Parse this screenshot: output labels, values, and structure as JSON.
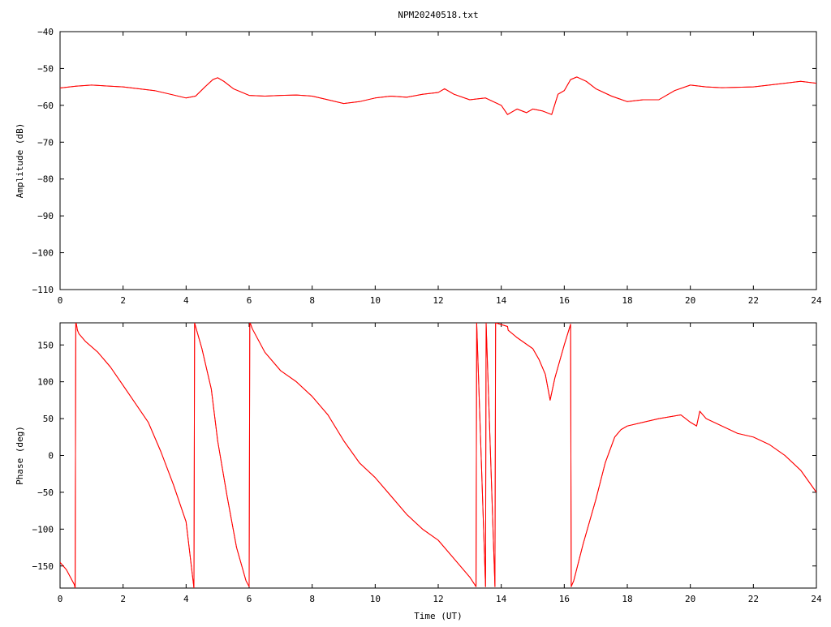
{
  "chart_data": [
    {
      "type": "line",
      "title": "NPM20240518.txt",
      "xlabel": "",
      "ylabel": "Amplitude (dB)",
      "xlim": [
        0,
        24
      ],
      "ylim": [
        -110,
        -40
      ],
      "xticks": [
        0,
        2,
        4,
        6,
        8,
        10,
        12,
        14,
        16,
        18,
        20,
        22,
        24
      ],
      "yticks": [
        -110,
        -100,
        -90,
        -80,
        -70,
        -60,
        -50,
        -40
      ],
      "ytick_labels": [
        "−110",
        "−100",
        "−90",
        "−80",
        "−70",
        "−60",
        "−50",
        "−40"
      ],
      "series": [
        {
          "color": "#ff0000",
          "x": [
            0,
            0.5,
            1,
            2,
            3,
            3.5,
            4,
            4.3,
            4.6,
            4.85,
            5.0,
            5.2,
            5.5,
            6,
            6.5,
            7,
            7.5,
            8,
            8.5,
            9,
            9.5,
            10,
            10.5,
            11,
            11.5,
            12,
            12.2,
            12.5,
            13,
            13.5,
            14,
            14.2,
            14.5,
            14.8,
            15,
            15.3,
            15.6,
            15.8,
            16.0,
            16.2,
            16.4,
            16.7,
            17,
            17.5,
            18,
            18.5,
            19,
            19.5,
            20,
            20.5,
            21,
            22,
            22.5,
            23,
            23.5,
            24
          ],
          "y": [
            -55.3,
            -54.8,
            -54.5,
            -55,
            -56,
            -57,
            -58,
            -57.5,
            -55,
            -53,
            -52.5,
            -53.5,
            -55.5,
            -57.3,
            -57.5,
            -57.3,
            -57.2,
            -57.5,
            -58.5,
            -59.5,
            -59,
            -58,
            -57.5,
            -57.8,
            -57,
            -56.5,
            -55.5,
            -57,
            -58.5,
            -58,
            -60,
            -62.5,
            -61,
            -62,
            -61,
            -61.5,
            -62.5,
            -57,
            -56,
            -53,
            -52.3,
            -53.5,
            -55.5,
            -57.5,
            -59,
            -58.5,
            -58.5,
            -56,
            -54.5,
            -55,
            -55.2,
            -55,
            -54.5,
            -54,
            -53.5,
            -54
          ]
        }
      ]
    },
    {
      "type": "line",
      "title": "",
      "xlabel": "Time (UT)",
      "ylabel": "Phase (deg)",
      "xlim": [
        0,
        24
      ],
      "ylim": [
        -180,
        180
      ],
      "xticks": [
        0,
        2,
        4,
        6,
        8,
        10,
        12,
        14,
        16,
        18,
        20,
        22,
        24
      ],
      "yticks": [
        -150,
        -100,
        -50,
        0,
        50,
        100,
        150
      ],
      "ytick_labels": [
        "−150",
        "−100",
        "−50",
        "0",
        "50",
        "100",
        "150"
      ],
      "series": [
        {
          "color": "#ff0000",
          "x": [
            0,
            0.2,
            0.45,
            0.48,
            0.5,
            0.52,
            0.55,
            0.6,
            0.8,
            1.2,
            1.6,
            2.0,
            2.4,
            2.8,
            3.2,
            3.6,
            4.0,
            4.25,
            4.27,
            4.3,
            4.5,
            4.8,
            5.0,
            5.3,
            5.6,
            5.9,
            6.0,
            6.02,
            6.05,
            6.1,
            6.5,
            7.0,
            7.5,
            8.0,
            8.5,
            9.0,
            9.5,
            10.0,
            10.5,
            11.0,
            11.5,
            12.0,
            12.5,
            13.0,
            13.2,
            13.22,
            13.5,
            13.52,
            13.8,
            13.82,
            14.2,
            14.22,
            14.5,
            15.0,
            15.2,
            15.4,
            15.55,
            15.7,
            16.0,
            16.2,
            16.22,
            16.3,
            16.6,
            17.0,
            17.3,
            17.6,
            17.8,
            18.0,
            18.5,
            19.0,
            19.7,
            20.0,
            20.2,
            20.3,
            20.5,
            21.0,
            21.5,
            22.0,
            22.5,
            23.0,
            23.5,
            24.0
          ],
          "y": [
            -145,
            -155,
            -175,
            -180,
            180,
            178,
            170,
            165,
            155,
            140,
            120,
            95,
            70,
            45,
            5,
            -40,
            -90,
            -180,
            180,
            175,
            145,
            90,
            20,
            -55,
            -125,
            -170,
            -178,
            180,
            178,
            172,
            140,
            115,
            100,
            80,
            55,
            20,
            -10,
            -30,
            -55,
            -80,
            -100,
            -115,
            -140,
            -165,
            -178,
            180,
            -178,
            180,
            -178,
            180,
            175,
            170,
            160,
            145,
            130,
            110,
            75,
            105,
            150,
            178,
            -178,
            -170,
            -120,
            -60,
            -10,
            25,
            35,
            40,
            45,
            50,
            55,
            45,
            40,
            60,
            50,
            40,
            30,
            25,
            15,
            0,
            -20,
            -50
          ]
        }
      ]
    }
  ]
}
